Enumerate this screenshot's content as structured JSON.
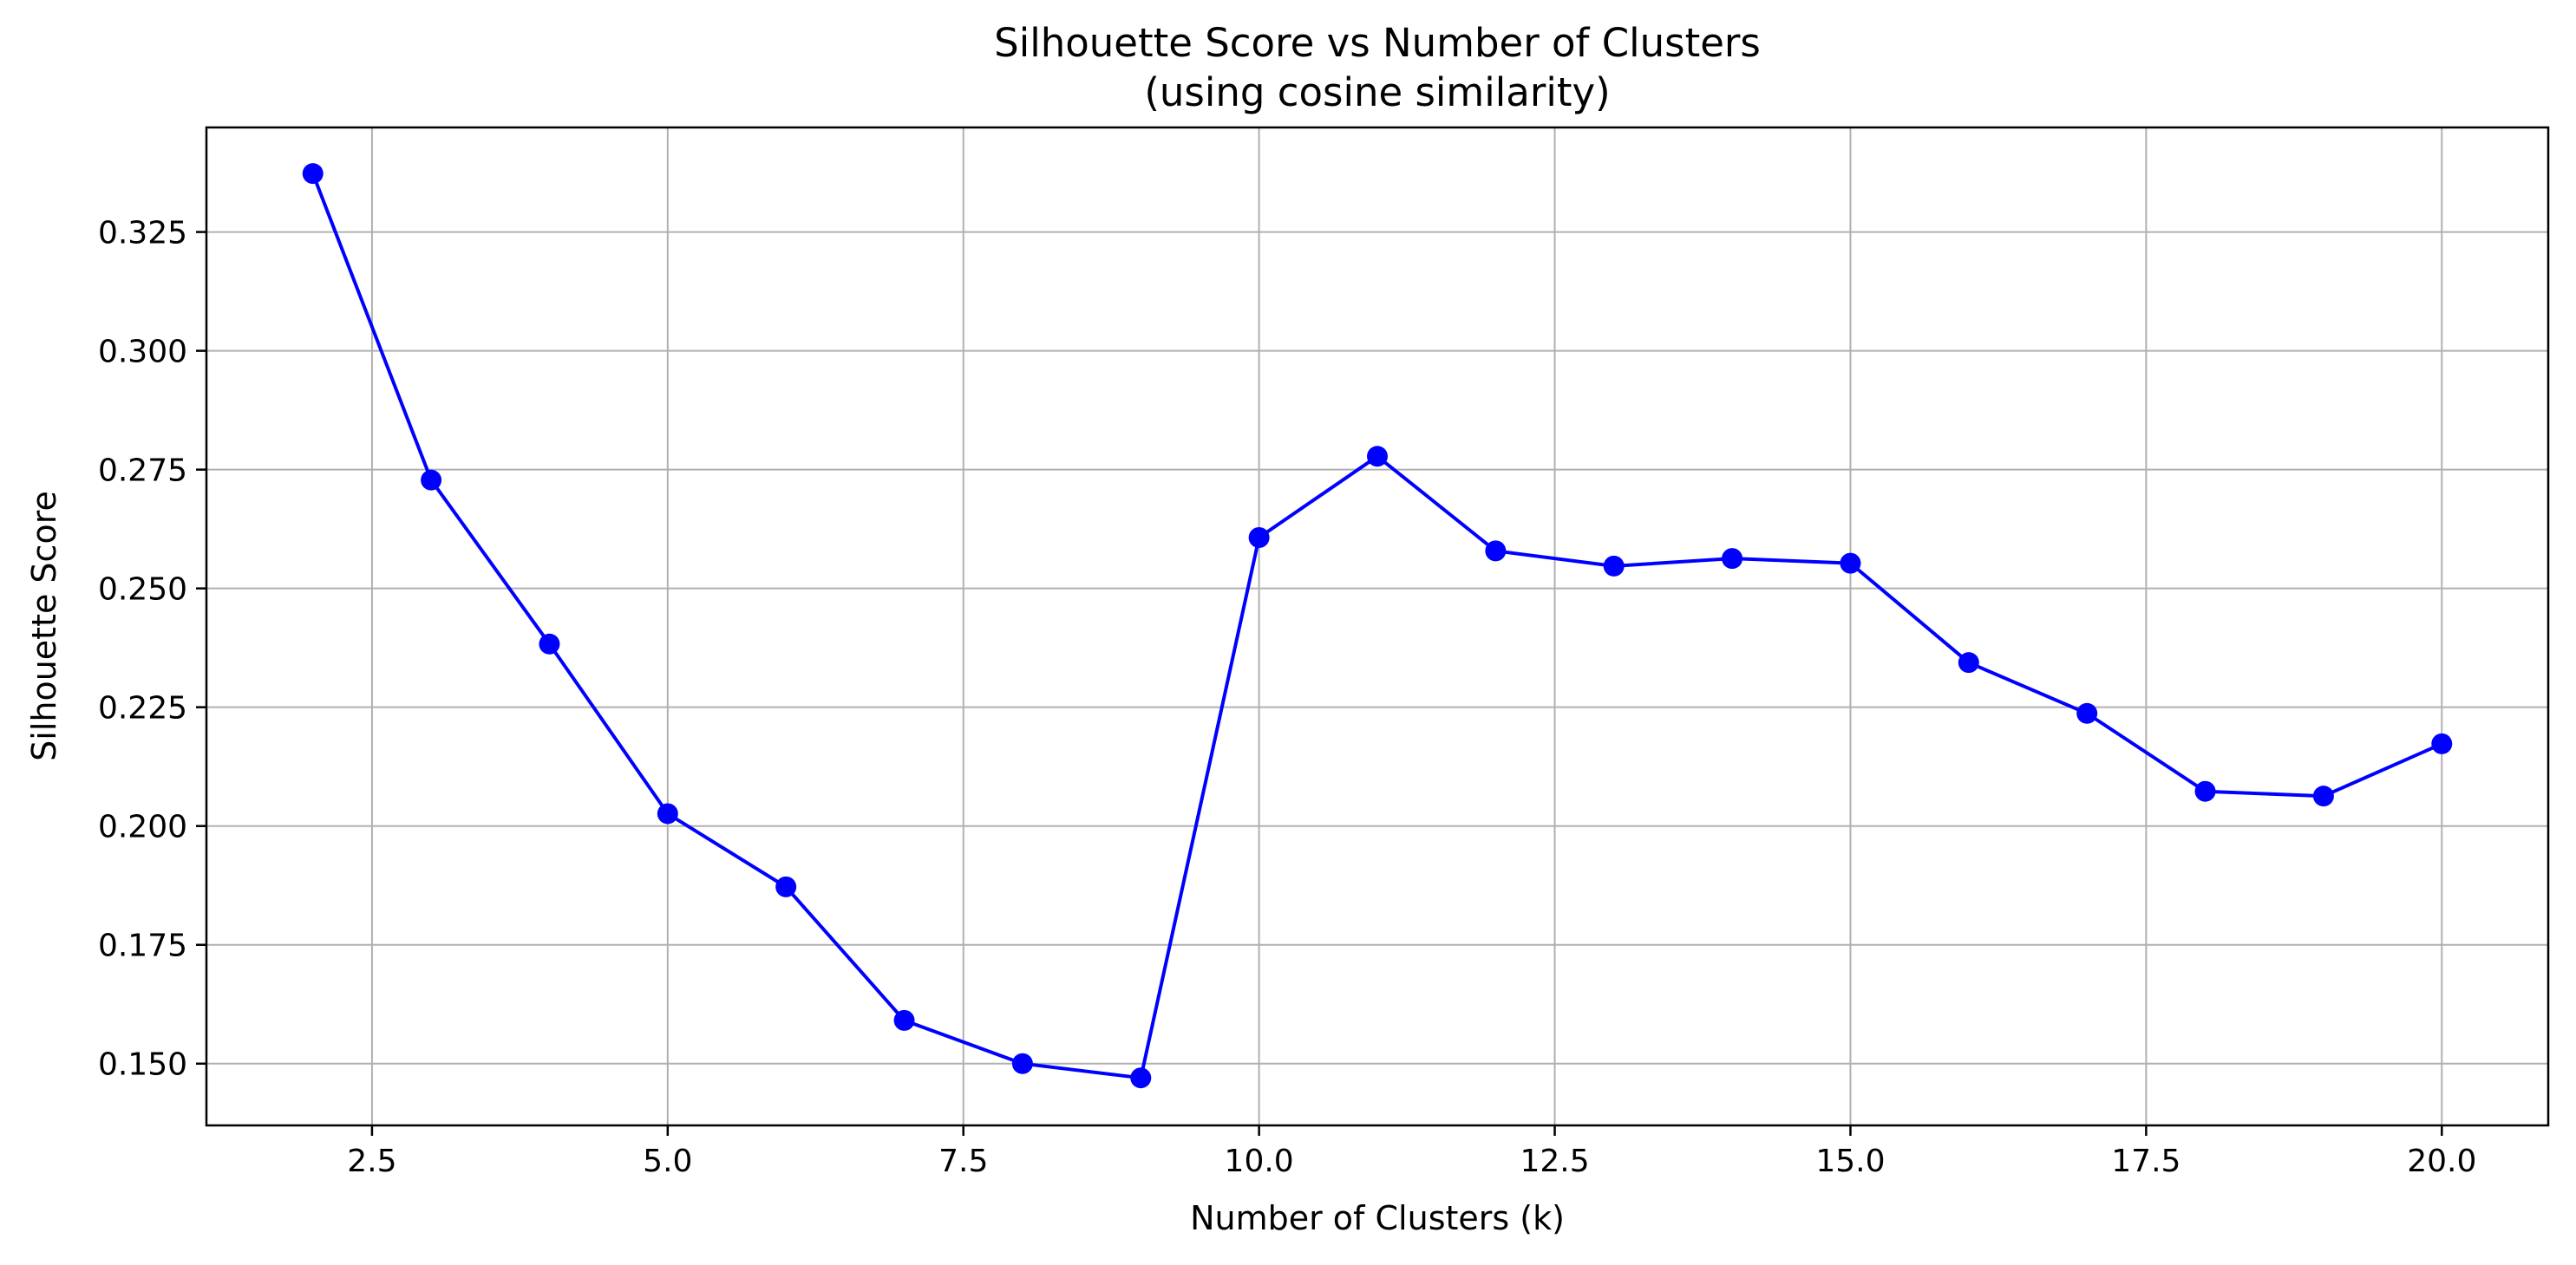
{
  "chart_data": {
    "type": "line",
    "title": "Silhouette Score vs Number of Clusters",
    "subtitle": "(using cosine similarity)",
    "xlabel": "Number of Clusters (k)",
    "ylabel": "Silhouette Score",
    "xlim": [
      1.1,
      20.9
    ],
    "ylim": [
      0.137,
      0.347
    ],
    "xticks": [
      2.5,
      5.0,
      7.5,
      10.0,
      12.5,
      15.0,
      17.5,
      20.0
    ],
    "xtick_labels": [
      "2.5",
      "5.0",
      "7.5",
      "10.0",
      "12.5",
      "15.0",
      "17.5",
      "20.0"
    ],
    "yticks": [
      0.15,
      0.175,
      0.2,
      0.225,
      0.25,
      0.275,
      0.3,
      0.325
    ],
    "ytick_labels": [
      "0.150",
      "0.175",
      "0.200",
      "0.225",
      "0.250",
      "0.275",
      "0.300",
      "0.325"
    ],
    "grid": true,
    "legend": "none",
    "series": [
      {
        "color": "#0000ff",
        "marker": "circle",
        "x": [
          2,
          3,
          4,
          5,
          6,
          7,
          8,
          9,
          10,
          11,
          12,
          13,
          14,
          15,
          16,
          17,
          18,
          19,
          20
        ],
        "y": [
          0.3373,
          0.2728,
          0.2383,
          0.2026,
          0.1872,
          0.1591,
          0.15,
          0.147,
          0.2607,
          0.2778,
          0.2579,
          0.2547,
          0.2563,
          0.2553,
          0.2344,
          0.2237,
          0.2073,
          0.2063,
          0.2173
        ]
      }
    ]
  }
}
